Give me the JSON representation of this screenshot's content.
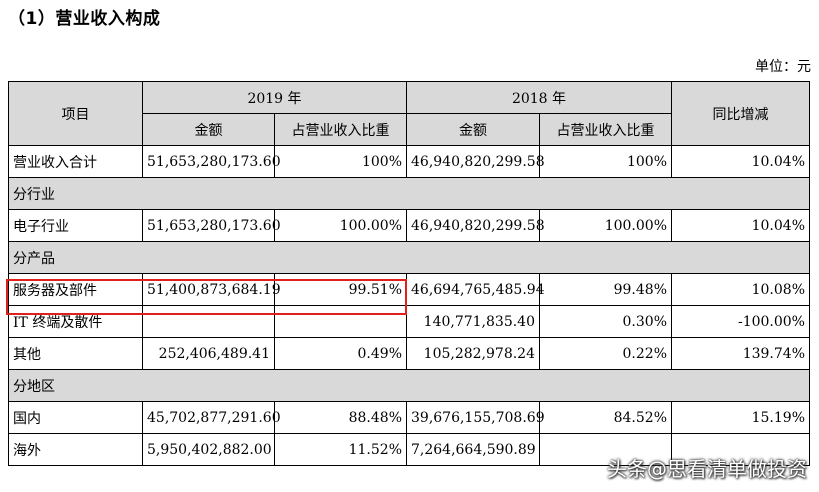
{
  "heading": "（1）营业收入构成",
  "unit": "单位：元",
  "header": {
    "item": "项目",
    "y2019": "2019 年",
    "y2018": "2018 年",
    "yoy": "同比增减",
    "amount": "金额",
    "ratio": "占营业收入比重"
  },
  "rows": {
    "total": {
      "label": "营业收入合计",
      "a2019": "51,653,280,173.60",
      "r2019": "100%",
      "a2018": "46,940,820,299.58",
      "r2018": "100%",
      "yoy": "10.04%"
    },
    "sec_industry": "分行业",
    "electronics": {
      "label": "电子行业",
      "a2019": "51,653,280,173.60",
      "r2019": "100.00%",
      "a2018": "46,940,820,299.58",
      "r2018": "100.00%",
      "yoy": "10.04%"
    },
    "sec_product": "分产品",
    "server": {
      "label": "服务器及部件",
      "a2019": "51,400,873,684.19",
      "r2019": "99.51%",
      "a2018": "46,694,765,485.94",
      "r2018": "99.48%",
      "yoy": "10.08%"
    },
    "it": {
      "label": "IT 终端及散件",
      "a2019": "",
      "r2019": "",
      "a2018": "140,771,835.40",
      "r2018": "0.30%",
      "yoy": "-100.00%"
    },
    "other": {
      "label": "其他",
      "a2019": "252,406,489.41",
      "r2019": "0.49%",
      "a2018": "105,282,978.24",
      "r2018": "0.22%",
      "yoy": "139.74%"
    },
    "sec_region": "分地区",
    "domestic": {
      "label": "国内",
      "a2019": "45,702,877,291.60",
      "r2019": "88.48%",
      "a2018": "39,676,155,708.69",
      "r2018": "84.52%",
      "yoy": "15.19%"
    },
    "overseas": {
      "label": "海外",
      "a2019": "5,950,402,882.00",
      "r2019": "11.52%",
      "a2018": "7,264,664,590.89",
      "r2018": "",
      "yoy": ""
    }
  },
  "watermark": "头条@思看清单做投资"
}
